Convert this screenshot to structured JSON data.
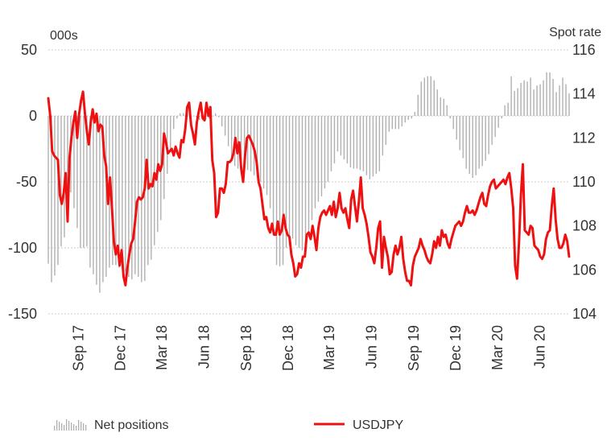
{
  "chart_data": {
    "type": "bar+line",
    "left_axis": {
      "unit": "000s",
      "ticks": [
        "50",
        "0",
        "-50",
        "-100",
        "-150"
      ],
      "range": [
        -150,
        50
      ]
    },
    "right_axis": {
      "unit": "Spot rate",
      "ticks": [
        "116",
        "114",
        "112",
        "110",
        "108",
        "106",
        "104"
      ],
      "range": [
        104,
        116
      ]
    },
    "x_labels": [
      "Sep 17",
      "Dec 17",
      "Mar 18",
      "Jun 18",
      "Sep 18",
      "Dec 18",
      "Mar 19",
      "Jun 19",
      "Sep 19",
      "Dec 19",
      "Mar 20",
      "Jun 20"
    ],
    "x_start": "2017-06-27",
    "x_step_days": 7,
    "grid": true,
    "legend_position": "bottom",
    "colors": {
      "bars": "#b0b0b0",
      "line": "#ee1111",
      "grid": "#cccccc"
    },
    "series": [
      {
        "name": "Net positions",
        "axis": "left",
        "kind": "bar",
        "values": [
          -112,
          -126,
          -121,
          -113,
          -99,
          -92,
          -76,
          -58,
          -70,
          -85,
          -100,
          -100,
          -99,
          -115,
          -120,
          -128,
          -134,
          -126,
          -122,
          -115,
          -113,
          -113,
          -115,
          -116,
          -118,
          -122,
          -124,
          -120,
          -122,
          -126,
          -125,
          -113,
          -109,
          -98,
          -88,
          -79,
          -63,
          -44,
          -25,
          -10,
          -2,
          2,
          2,
          1,
          1,
          0,
          -1,
          -3,
          0,
          -3,
          -2,
          0,
          2,
          -1,
          -8,
          -15,
          -23,
          -31,
          -38,
          -40,
          -40,
          -40,
          -41,
          -42,
          -45,
          -46,
          -50,
          -55,
          -60,
          -70,
          -84,
          -113,
          -114,
          -113,
          -100,
          -98,
          -93,
          -98,
          -100,
          -102,
          -103,
          -92,
          -79,
          -70,
          -65,
          -61,
          -55,
          -50,
          -42,
          -36,
          -27,
          -30,
          -33,
          -36,
          -39,
          -40,
          -40,
          -41,
          -42,
          -45,
          -48,
          -46,
          -44,
          -42,
          -30,
          -22,
          -12,
          -10,
          -10,
          -10,
          -8,
          -5,
          -3,
          -2,
          3,
          16,
          26,
          29,
          30,
          30,
          27,
          20,
          14,
          13,
          8,
          -2,
          -10,
          -18,
          -26,
          -32,
          -40,
          -44,
          -47,
          -45,
          -40,
          -38,
          -34,
          -29,
          -22,
          -16,
          -9,
          -2,
          8,
          10,
          30,
          19,
          21,
          25,
          27,
          26,
          29,
          20,
          23,
          24,
          27,
          33,
          33,
          28,
          18,
          23,
          29,
          24,
          17
        ]
      },
      {
        "name": "USDJPY",
        "axis": "right",
        "kind": "line",
        "values": [
          113.8,
          113.0,
          111.4,
          111.2,
          111.1,
          111.0,
          109.4,
          109.0,
          109.5,
          110.4,
          108.2,
          111.1,
          112.0,
          112.7,
          113.2,
          112.0,
          113.1,
          113.7,
          114.1,
          113.1,
          112.3,
          111.7,
          112.7,
          113.3,
          112.7,
          113.1,
          112.3,
          112.6,
          112.5,
          111.2,
          110.7,
          109.0,
          110.2,
          108.8,
          107.3,
          106.7,
          107.1,
          106.2,
          106.9,
          105.7,
          105.3,
          106.1,
          106.7,
          107.2,
          107.4,
          108.2,
          109.1,
          109.3,
          109.2,
          109.3,
          109.7,
          111.0,
          109.7,
          109.9,
          109.8,
          110.4,
          110.1,
          110.8,
          110.5,
          110.8,
          112.2,
          111.8,
          111.3,
          111.4,
          111.5,
          111.2,
          111.6,
          111.3,
          111.1,
          111.9,
          111.8,
          112.4,
          113.4,
          113.6,
          112.6,
          112.2,
          111.7,
          112.7,
          113.2,
          113.6,
          112.9,
          112.8,
          113.6,
          113.0,
          113.4,
          111.0,
          110.4,
          108.4,
          108.6,
          109.7,
          109.7,
          109.5,
          109.9,
          110.9,
          110.9,
          111.0,
          111.3,
          112.0,
          111.3,
          111.8,
          110.6,
          110.0,
          111.2,
          112.0,
          112.1,
          111.9,
          111.7,
          111.4,
          110.9,
          110.0,
          109.7,
          109.0,
          108.3,
          108.4,
          107.9,
          107.7,
          108.1,
          107.6,
          107.6,
          108.2,
          107.6,
          107.8,
          108.5,
          107.9,
          107.6,
          107.5,
          106.7,
          106.3,
          105.7,
          105.8,
          106.3,
          106.1,
          106.6,
          106.6,
          107.6,
          107.7,
          107.4,
          108.0,
          107.5,
          106.9,
          107.9,
          108.4,
          108.6,
          108.7,
          108.5,
          108.7,
          108.9,
          108.5,
          109.1,
          108.4,
          108.8,
          109.5,
          108.8,
          108.6,
          108.8,
          108.3,
          107.9,
          109.2,
          109.6,
          108.9,
          108.2,
          109.1,
          110.2,
          108.8,
          108.5,
          108.1,
          107.5,
          106.8,
          106.6,
          106.3,
          107.0,
          107.9,
          108.2,
          106.1,
          107.5,
          107.0,
          106.6,
          105.8,
          105.9,
          106.7,
          107.1,
          106.7,
          107.0,
          107.5,
          106.5,
          105.9,
          105.5,
          105.5,
          105.3,
          106.2,
          106.6,
          106.8,
          107.0,
          107.4,
          107.1,
          106.9,
          106.6,
          106.4,
          106.3,
          106.7,
          107.3,
          107.0,
          107.5,
          107.1,
          107.8,
          107.5,
          107.6,
          107.2,
          107.0,
          107.4,
          107.7,
          108.0,
          108.1,
          108.2,
          108.0,
          108.2,
          108.6,
          108.9,
          108.6,
          108.6,
          108.7,
          108.5,
          108.7,
          109.0,
          109.3,
          109.5,
          109.0,
          108.9,
          109.4,
          109.8,
          110.0,
          110.1,
          109.7,
          109.8,
          109.9,
          110.0,
          110.1,
          109.9,
          110.2,
          110.4,
          109.7,
          108.8,
          106.2,
          105.6,
          107.2,
          109.4,
          110.8,
          107.8,
          107.7,
          107.6,
          108.0,
          107.9,
          107.1,
          107.0,
          106.9,
          106.6,
          106.5,
          106.7,
          107.4,
          107.7,
          107.8,
          108.9,
          109.7,
          108.3,
          107.4,
          107.0,
          107.0,
          107.2,
          107.6,
          107.3,
          106.6
        ]
      }
    ]
  },
  "legend": {
    "bars_label": "Net positions",
    "line_label": "USDJPY"
  }
}
